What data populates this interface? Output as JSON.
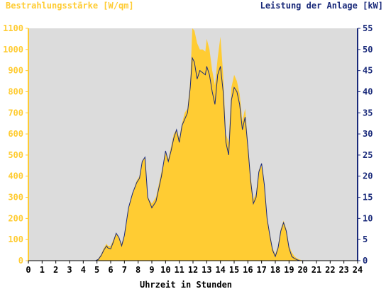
{
  "chart_data": {
    "type": "area",
    "left_axis_title": "Bestrahlungsstärke [W/qm]",
    "right_axis_title": "Leistung der Anlage [kW]",
    "xlabel": "Uhrzeit in Stunden",
    "xlim": [
      0,
      24
    ],
    "y_left_lim": [
      0,
      1100
    ],
    "y_right_lim": [
      0,
      55
    ],
    "x_ticks": [
      "0",
      "1",
      "2",
      "3",
      "4",
      "5",
      "6",
      "7",
      "8",
      "9",
      "10",
      "11",
      "12",
      "13",
      "14",
      "15",
      "16",
      "17",
      "18",
      "19",
      "20",
      "21",
      "22",
      "23",
      "24"
    ],
    "y_left_ticks": [
      "0",
      "100",
      "200",
      "300",
      "400",
      "500",
      "600",
      "700",
      "800",
      "900",
      "1000",
      "1100"
    ],
    "y_right_ticks": [
      "0",
      "5",
      "10",
      "15",
      "20",
      "25",
      "30",
      "35",
      "40",
      "45",
      "50",
      "55"
    ],
    "colors": {
      "irradiance_fill": "#ffcc33",
      "power_line": "#1a2a7a",
      "plot_background": "#dcdcdc",
      "left_axis": "#ffcc33",
      "right_axis": "#1a2a7a"
    },
    "series": [
      {
        "axis": "left",
        "x": [
          0,
          4.9,
          5.1,
          5.3,
          5.5,
          5.7,
          5.8,
          6.0,
          6.2,
          6.4,
          6.6,
          6.8,
          7.0,
          7.3,
          7.6,
          7.9,
          8.1,
          8.3,
          8.5,
          8.7,
          9.0,
          9.3,
          9.5,
          9.7,
          9.9,
          10.0,
          10.2,
          10.4,
          10.6,
          10.8,
          11.0,
          11.2,
          11.4,
          11.6,
          11.8,
          11.95,
          12.1,
          12.3,
          12.5,
          12.7,
          12.9,
          13.0,
          13.2,
          13.4,
          13.6,
          13.8,
          14.0,
          14.2,
          14.4,
          14.6,
          14.8,
          15.0,
          15.2,
          15.4,
          15.6,
          15.8,
          16.0,
          16.2,
          16.4,
          16.6,
          16.8,
          17.0,
          17.2,
          17.4,
          17.6,
          17.8,
          18.0,
          18.2,
          18.4,
          18.6,
          18.8,
          19.0,
          19.2,
          19.4,
          19.6,
          19.8,
          20.0,
          20.2,
          20.4,
          24
        ],
        "values": [
          0,
          0,
          10,
          30,
          60,
          80,
          70,
          70,
          100,
          130,
          110,
          80,
          120,
          250,
          320,
          380,
          400,
          470,
          490,
          300,
          270,
          300,
          360,
          420,
          480,
          520,
          480,
          540,
          600,
          620,
          580,
          650,
          700,
          720,
          850,
          1100,
          1090,
          1030,
          1000,
          1000,
          990,
          1050,
          1000,
          900,
          830,
          960,
          1060,
          880,
          600,
          560,
          820,
          880,
          850,
          790,
          660,
          720,
          560,
          400,
          290,
          320,
          430,
          450,
          370,
          200,
          130,
          60,
          30,
          70,
          150,
          190,
          150,
          70,
          40,
          20,
          10,
          5,
          0,
          0,
          0,
          0
        ]
      },
      {
        "axis": "right",
        "x": [
          0,
          4.9,
          5.1,
          5.3,
          5.5,
          5.7,
          5.8,
          6.0,
          6.2,
          6.4,
          6.6,
          6.8,
          7.0,
          7.3,
          7.6,
          7.9,
          8.1,
          8.3,
          8.5,
          8.7,
          9.0,
          9.3,
          9.5,
          9.7,
          9.9,
          10.0,
          10.2,
          10.4,
          10.6,
          10.8,
          11.0,
          11.2,
          11.4,
          11.6,
          11.8,
          11.95,
          12.1,
          12.3,
          12.5,
          12.7,
          12.9,
          13.0,
          13.2,
          13.4,
          13.6,
          13.8,
          14.0,
          14.2,
          14.4,
          14.6,
          14.8,
          15.0,
          15.2,
          15.4,
          15.6,
          15.8,
          16.0,
          16.2,
          16.4,
          16.6,
          16.8,
          17.0,
          17.2,
          17.4,
          17.6,
          17.8,
          18.0,
          18.2,
          18.4,
          18.6,
          18.8,
          19.0,
          19.2,
          19.4,
          19.6,
          19.8,
          20.0,
          20.2,
          20.4,
          24
        ],
        "values": [
          0,
          0,
          0.3,
          1.2,
          2.5,
          3.5,
          3,
          2.8,
          4.5,
          6.5,
          5.5,
          3.5,
          6,
          12.5,
          16,
          18.5,
          19.5,
          23.5,
          24.5,
          15,
          12.5,
          14,
          17,
          20,
          24,
          26,
          23.5,
          26,
          29,
          31,
          28,
          32,
          33.5,
          35,
          41,
          48,
          47,
          43,
          45,
          44.5,
          44,
          46,
          44,
          40,
          37,
          44,
          46,
          40,
          28,
          25,
          38,
          41,
          40,
          37,
          31,
          34,
          27,
          19,
          13.5,
          15,
          21,
          23,
          18,
          10,
          6,
          2.5,
          1,
          3,
          7,
          9,
          7,
          3,
          1,
          0.5,
          0.2,
          0,
          0,
          0,
          0,
          0
        ]
      }
    ]
  }
}
